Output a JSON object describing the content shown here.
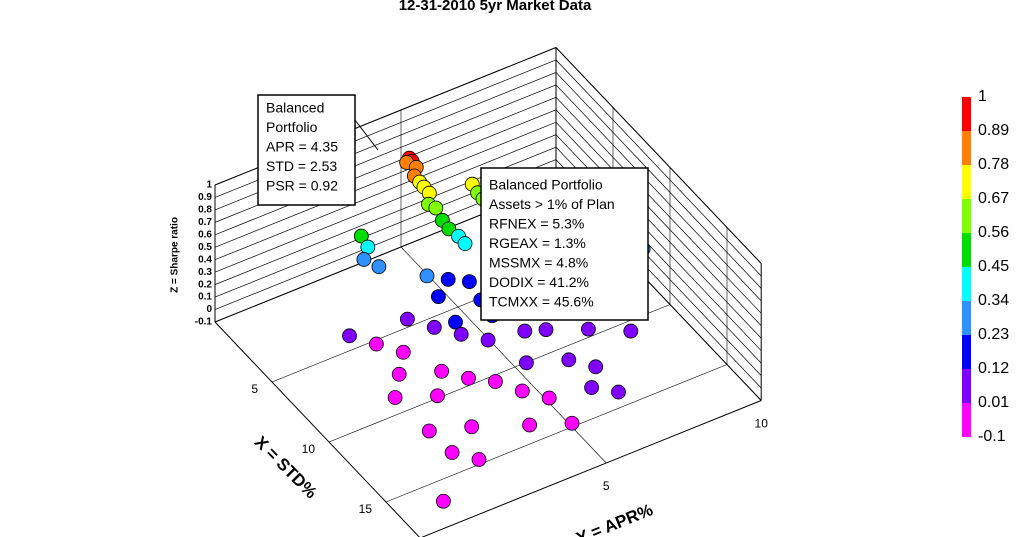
{
  "chart_data": {
    "type": "scatter3d",
    "title": "12-31-2010 5yr Market Data",
    "xlabel": "X = STD%",
    "ylabel": "Y = APR%",
    "zlabel": "Z = Sharpe ratio",
    "xlim": [
      0,
      18
    ],
    "ylim": [
      -1,
      10
    ],
    "zlim": [
      -0.1,
      1
    ],
    "xticks": [
      5,
      10,
      15
    ],
    "yticks": [
      5,
      10
    ],
    "zticks": [
      -0.1,
      0,
      0.1,
      0.2,
      0.3,
      0.4,
      0.5,
      0.6,
      0.7,
      0.8,
      0.9,
      1
    ],
    "grid": true,
    "colorbar": {
      "ticks": [
        1,
        0.89,
        0.78,
        0.67,
        0.56,
        0.45,
        0.34,
        0.23,
        0.12,
        0.01,
        -0.1
      ],
      "colors": [
        "#ff0000",
        "#ff8000",
        "#ffff00",
        "#80ff00",
        "#00dd00",
        "#00ffff",
        "#3090ff",
        "#0000ff",
        "#8000ff",
        "#ff00ff"
      ]
    },
    "annotations": [
      {
        "lines": [
          "Balanced",
          "Portfolio",
          "APR = 4.35",
          "STD = 2.53",
          "PSR = 0.92"
        ]
      },
      {
        "lines": [
          "Balanced Portfolio",
          "Assets > 1% of Plan",
          "RFNEX = 5.3%",
          "RGEAX = 1.3%",
          "MSSMX = 4.8%",
          "DODIX = 41.2%",
          "TCMXX = 45.6%"
        ]
      }
    ],
    "x": [
      2.5,
      2.6,
      2.4,
      2.7,
      2.8,
      3.0,
      3.1,
      3.3,
      3.5,
      3.6,
      3.9,
      4.2,
      4.5,
      4.8,
      3.8,
      4.0,
      4.2,
      4.5,
      4.8,
      5.0,
      2.5,
      2.8,
      3.0,
      3.5,
      5,
      5.5,
      6,
      6,
      6.5,
      7,
      7,
      7.5,
      8,
      8,
      8.5,
      9,
      6,
      5.5,
      6,
      7,
      8,
      9,
      9.5,
      10,
      10,
      7,
      8,
      11,
      12,
      9,
      6,
      7,
      8,
      9,
      10,
      11,
      12,
      13,
      14,
      15,
      16.5,
      11,
      12,
      13,
      14,
      15,
      10,
      5,
      9,
      14,
      15,
      13,
      12
    ],
    "y": [
      4.35,
      4.4,
      4.3,
      4.5,
      4.4,
      4.5,
      4.6,
      4.7,
      4.6,
      4.8,
      4.9,
      5.0,
      5.2,
      5.3,
      5.9,
      6.0,
      6.1,
      6.2,
      6.4,
      6.6,
      2.8,
      2.9,
      2.7,
      3.0,
      4,
      4.5,
      5,
      4,
      5.5,
      6,
      5,
      4,
      5,
      6,
      6.5,
      7,
      6.5,
      5.8,
      3,
      3.5,
      4,
      4.5,
      5.5,
      6,
      7.5,
      7.2,
      8,
      7,
      8,
      9.5,
      2,
      2.5,
      2,
      3,
      3.5,
      4,
      4.5,
      5,
      4,
      5,
      0.3,
      5,
      6,
      6.5,
      6,
      6.5,
      2.5,
      1.5,
      1.5,
      1.5,
      2,
      2.5,
      1.5
    ],
    "z": [
      0.92,
      0.9,
      0.88,
      0.85,
      0.8,
      0.76,
      0.72,
      0.68,
      0.62,
      0.58,
      0.5,
      0.45,
      0.4,
      0.36,
      0.68,
      0.62,
      0.58,
      0.5,
      0.45,
      0.4,
      0.45,
      0.38,
      0.32,
      0.28,
      0.25,
      0.22,
      0.2,
      0.18,
      0.2,
      0.18,
      0.15,
      0.12,
      0.12,
      0.14,
      0.15,
      0.15,
      0.24,
      0.26,
      0.1,
      0.08,
      0.07,
      0.07,
      0.09,
      0.1,
      0.14,
      0.2,
      0.18,
      0.1,
      0.08,
      0.3,
      0,
      -0.02,
      -0.05,
      -0.03,
      -0.04,
      -0.02,
      -0.05,
      -0.06,
      -0.08,
      -0.07,
      -0.08,
      0.03,
      0.05,
      0.04,
      0.02,
      0.03,
      -0.08,
      0.02,
      -0.09,
      -0.05,
      -0.06,
      -0.04,
      -0.07
    ]
  }
}
